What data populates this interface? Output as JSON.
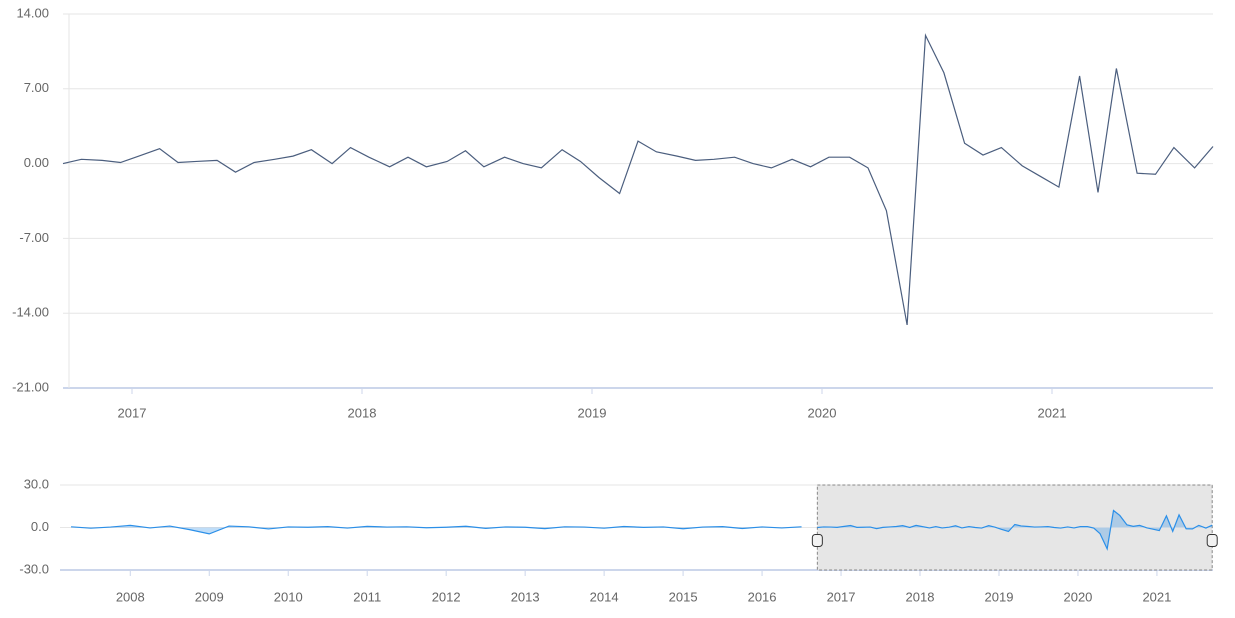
{
  "chart_data": [
    {
      "type": "line",
      "color": "#4b5e7e",
      "grid": true,
      "x": [
        2016.7,
        2016.78,
        2016.87,
        2016.95,
        2017.03,
        2017.12,
        2017.2,
        2017.28,
        2017.37,
        2017.45,
        2017.53,
        2017.62,
        2017.7,
        2017.78,
        2017.87,
        2017.95,
        2018.03,
        2018.12,
        2018.2,
        2018.28,
        2018.37,
        2018.45,
        2018.53,
        2018.62,
        2018.7,
        2018.78,
        2018.87,
        2018.95,
        2019.03,
        2019.12,
        2019.2,
        2019.28,
        2019.37,
        2019.45,
        2019.53,
        2019.62,
        2019.7,
        2019.78,
        2019.87,
        2019.95,
        2020.03,
        2020.12,
        2020.2,
        2020.28,
        2020.37,
        2020.45,
        2020.53,
        2020.62,
        2020.7,
        2020.78,
        2020.87,
        2020.95,
        2021.03,
        2021.12,
        2021.2,
        2021.28,
        2021.37,
        2021.45,
        2021.53,
        2021.62,
        2021.7
      ],
      "values": [
        0.0,
        0.4,
        0.3,
        0.1,
        0.7,
        1.4,
        0.1,
        0.2,
        0.3,
        -0.8,
        0.1,
        0.4,
        0.7,
        1.3,
        0.0,
        1.5,
        0.6,
        -0.3,
        0.6,
        -0.3,
        0.2,
        1.2,
        -0.3,
        0.6,
        0.0,
        -0.4,
        1.3,
        0.2,
        -1.3,
        -2.8,
        2.1,
        1.1,
        0.7,
        0.3,
        0.4,
        0.6,
        0.0,
        -0.4,
        0.4,
        -0.3,
        0.6,
        0.6,
        -0.4,
        -4.4,
        -15.1,
        12.0,
        8.5,
        1.9,
        0.8,
        1.5,
        -0.2,
        -1.2,
        -2.2,
        8.2,
        -2.7,
        8.9,
        -0.9,
        -1.0,
        1.5,
        -0.4,
        1.6
      ],
      "xlim": [
        2016.7,
        2021.7
      ],
      "xticks": [
        2017,
        2018,
        2019,
        2020,
        2021
      ],
      "ylim": [
        -21,
        14
      ],
      "yticks": [
        {
          "value": -21,
          "label": "-21.00"
        },
        {
          "value": -14,
          "label": "-14.00"
        },
        {
          "value": -7,
          "label": "-7.00"
        },
        {
          "value": 0,
          "label": "0.00"
        },
        {
          "value": 7,
          "label": "7.00"
        },
        {
          "value": 14,
          "label": "14.00"
        }
      ]
    },
    {
      "type": "area",
      "color": "#2b8fe8",
      "grid": true,
      "x": [
        2007.25,
        2007.5,
        2007.75,
        2008.0,
        2008.25,
        2008.5,
        2008.75,
        2009.0,
        2009.25,
        2009.5,
        2009.75,
        2010.0,
        2010.25,
        2010.5,
        2010.75,
        2011.0,
        2011.25,
        2011.5,
        2011.75,
        2012.0,
        2012.25,
        2012.5,
        2012.75,
        2013.0,
        2013.25,
        2013.5,
        2013.75,
        2014.0,
        2014.25,
        2014.5,
        2014.75,
        2015.0,
        2015.25,
        2015.5,
        2015.75,
        2016.0,
        2016.25,
        2016.5
      ],
      "values": [
        0.5,
        -0.5,
        0.3,
        1.5,
        -0.3,
        1.0,
        -1.5,
        -4.5,
        1.0,
        0.5,
        -1.0,
        0.4,
        0.2,
        0.6,
        -0.4,
        0.8,
        0.3,
        0.5,
        -0.2,
        0.2,
        0.9,
        -0.6,
        0.4,
        0.2,
        -0.8,
        0.5,
        0.3,
        -0.5,
        0.7,
        0.1,
        0.4,
        -0.9,
        0.3,
        0.6,
        -0.7,
        0.4,
        -0.3,
        0.5
      ],
      "xlim": [
        2007.11,
        2021.71
      ],
      "xticks": [
        2008,
        2009,
        2010,
        2011,
        2012,
        2013,
        2014,
        2015,
        2016,
        2017,
        2018,
        2019,
        2020,
        2021
      ],
      "ylim": [
        -30,
        30
      ],
      "yticks": [
        {
          "value": -30,
          "label": "-30.0"
        },
        {
          "value": 0,
          "label": "0.0"
        },
        {
          "value": 30,
          "label": "30.0"
        }
      ]
    }
  ]
}
